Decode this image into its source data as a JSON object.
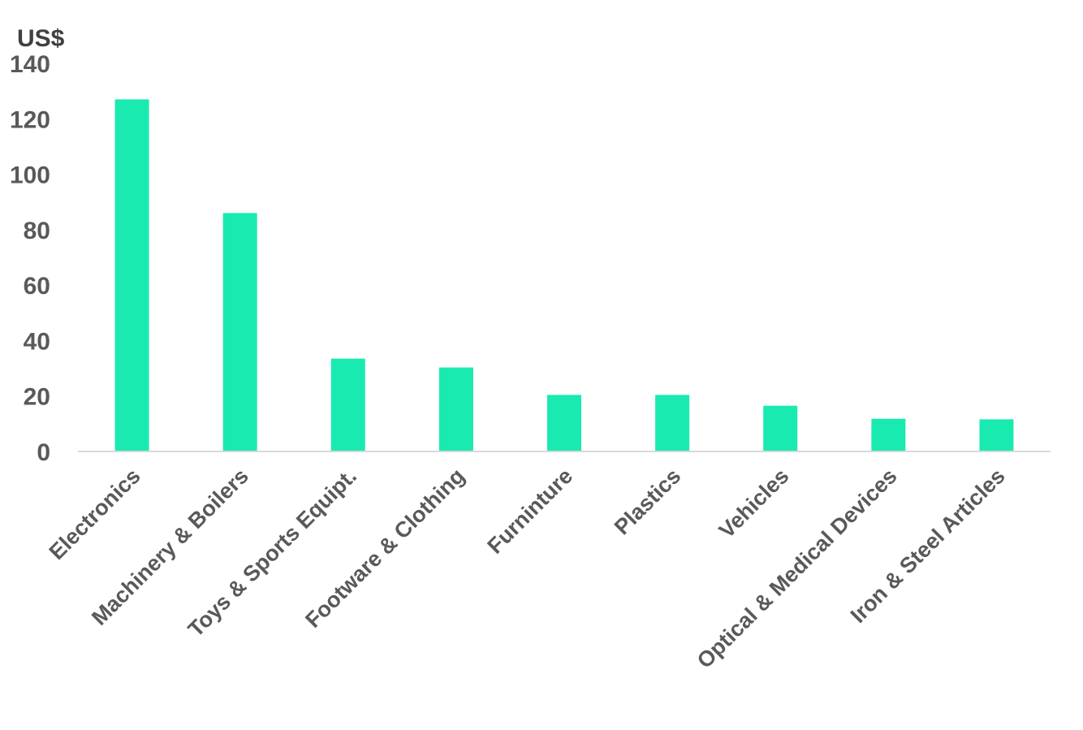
{
  "chart_data": {
    "type": "bar",
    "title": "",
    "xlabel": "",
    "ylabel": "US$",
    "ylim": [
      0,
      140
    ],
    "yticks": [
      0,
      20,
      40,
      60,
      80,
      100,
      120,
      140
    ],
    "grid": false,
    "legend": "none",
    "bar_color": "#19EAB0",
    "axis_color": "#D9D9D9",
    "categories": [
      "Electronics",
      "Machinery & Boilers",
      "Toys & Sports Equipt.",
      "Footware & Clothing",
      "Furninture",
      "Plastics",
      "Vehicles",
      "Optical & Medical Devices",
      "Iron & Steel Articles"
    ],
    "values": [
      127,
      86,
      33.5,
      30.3,
      20.4,
      20.4,
      16.5,
      11.8,
      11.6
    ]
  }
}
